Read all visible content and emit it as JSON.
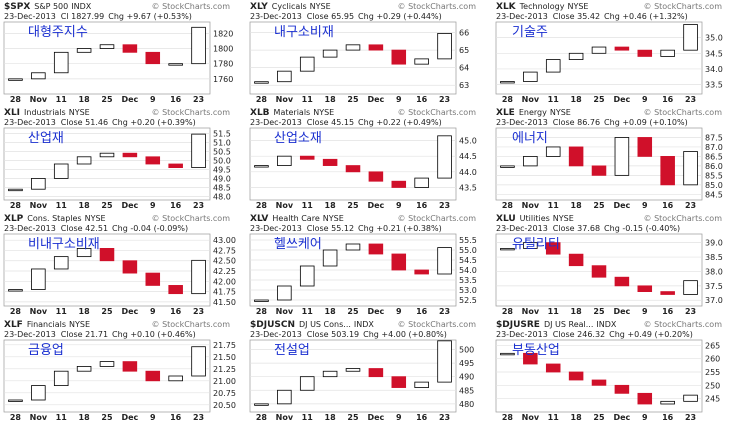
{
  "chart_data": [
    {
      "type": "candlestick",
      "symbol": "$SPX",
      "name": "S&P 500",
      "exchange": "INDX",
      "source": "© StockCharts.com",
      "date": "23-Dec-2013",
      "close": "Cl 1827.99",
      "change": "Chg +9.67 (+0.53%)",
      "title": "대형주지수",
      "categories": [
        "28",
        "Nov",
        "11",
        "18",
        "25",
        "Dec",
        "9",
        "16",
        "23"
      ],
      "values": [
        1760,
        1768,
        1795,
        1800,
        1805,
        1795,
        1780,
        1780,
        1828
      ],
      "ylim": [
        1740,
        1835
      ],
      "yticks": [
        1760,
        1780,
        1800,
        1820
      ]
    },
    {
      "type": "candlestick",
      "symbol": "XLY",
      "name": "Cyclicals",
      "exchange": "NYSE",
      "source": "© StockCharts.com",
      "date": "23-Dec-2013",
      "close": "Close 65.95",
      "change": "Chg +0.29 (+0.44%)",
      "title": "내구소비재",
      "categories": [
        "28",
        "Nov",
        "11",
        "18",
        "25",
        "Dec",
        "9",
        "16",
        "23"
      ],
      "values": [
        63.2,
        63.8,
        64.6,
        65.0,
        65.3,
        65.0,
        64.2,
        64.5,
        65.95
      ],
      "ylim": [
        62.5,
        66.6
      ],
      "yticks": [
        63,
        64,
        65,
        66
      ]
    },
    {
      "type": "candlestick",
      "symbol": "XLK",
      "name": "Technology",
      "exchange": "NYSE",
      "source": "© StockCharts.com",
      "date": "23-Dec-2013",
      "close": "Close 35.42",
      "change": "Chg +0.46 (+1.32%)",
      "title": "기술주",
      "categories": [
        "28",
        "Nov",
        "11",
        "18",
        "25",
        "Dec",
        "9",
        "16",
        "23"
      ],
      "values": [
        33.6,
        33.9,
        34.3,
        34.5,
        34.7,
        34.6,
        34.4,
        34.6,
        35.42
      ],
      "ylim": [
        33.2,
        35.5
      ],
      "yticks": [
        33.5,
        {
          "value": 34,
          "label": "34.0"
        },
        34.5,
        {
          "value": 35,
          "label": "35.0"
        }
      ]
    },
    {
      "type": "candlestick",
      "symbol": "XLI",
      "name": "Industrials",
      "exchange": "NYSE",
      "source": "© StockCharts.com",
      "date": "23-Dec-2013",
      "close": "Close 51.46",
      "change": "Chg +0.20 (+0.39%)",
      "title": "산업재",
      "categories": [
        "28",
        "Nov",
        "11",
        "18",
        "25",
        "Dec",
        "9",
        "16",
        "23"
      ],
      "values": [
        48.4,
        49.0,
        49.8,
        50.2,
        50.4,
        50.2,
        49.8,
        49.6,
        51.46
      ],
      "ylim": [
        47.8,
        51.8
      ],
      "yticks": [
        {
          "value": 48,
          "label": "48.0"
        },
        48.5,
        {
          "value": 49,
          "label": "49.0"
        },
        49.5,
        {
          "value": 50,
          "label": "50.0"
        },
        50.5,
        {
          "value": 51,
          "label": "51.0"
        },
        51.5
      ]
    },
    {
      "type": "candlestick",
      "symbol": "XLB",
      "name": "Materials",
      "exchange": "NYSE",
      "source": "© StockCharts.com",
      "date": "23-Dec-2013",
      "close": "Close 45.15",
      "change": "Chg +0.22 (+0.49%)",
      "title": "산업소재",
      "categories": [
        "28",
        "Nov",
        "11",
        "18",
        "25",
        "Dec",
        "9",
        "16",
        "23"
      ],
      "values": [
        44.2,
        44.5,
        44.4,
        44.2,
        44.0,
        43.7,
        43.5,
        43.8,
        45.15
      ],
      "ylim": [
        43.1,
        45.4
      ],
      "yticks": [
        43.5,
        {
          "value": 44,
          "label": "44.0"
        },
        44.5,
        {
          "value": 45,
          "label": "45.0"
        }
      ]
    },
    {
      "type": "candlestick",
      "symbol": "XLE",
      "name": "Energy",
      "exchange": "NYSE",
      "source": "© StockCharts.com",
      "date": "23-Dec-2013",
      "close": "Close 86.76",
      "change": "Chg +0.09 (+0.10%)",
      "title": "에너지",
      "categories": [
        "28",
        "Nov",
        "11",
        "18",
        "25",
        "Dec",
        "9",
        "16",
        "23"
      ],
      "values": [
        86.0,
        86.5,
        87.0,
        86.0,
        85.5,
        87.5,
        86.5,
        85.0,
        86.76
      ],
      "ylim": [
        84.2,
        88
      ],
      "yticks": [
        84.5,
        {
          "value": 85,
          "label": "85.0"
        },
        85.5,
        {
          "value": 86,
          "label": "86.0"
        },
        86.5,
        {
          "value": 87,
          "label": "87.0"
        },
        87.5
      ]
    },
    {
      "type": "candlestick",
      "symbol": "XLP",
      "name": "Cons. Staples",
      "exchange": "NYSE",
      "source": "© StockCharts.com",
      "date": "23-Dec-2013",
      "close": "Close 42.51",
      "change": "Chg -0.04 (-0.09%)",
      "title": "비내구소비재",
      "categories": [
        "28",
        "Nov",
        "11",
        "18",
        "25",
        "Dec",
        "9",
        "16",
        "23"
      ],
      "values": [
        41.8,
        42.3,
        42.6,
        42.8,
        42.5,
        42.2,
        41.9,
        41.7,
        42.51
      ],
      "ylim": [
        41.4,
        43.15
      ],
      "yticks": [
        {
          "value": 41.5,
          "label": "41.50"
        },
        41.75,
        {
          "value": 42,
          "label": "42.00"
        },
        42.25,
        {
          "value": 42.5,
          "label": "42.50"
        },
        42.75,
        {
          "value": 43,
          "label": "43.00"
        }
      ]
    },
    {
      "type": "candlestick",
      "symbol": "XLV",
      "name": "Health Care",
      "exchange": "NYSE",
      "source": "© StockCharts.com",
      "date": "23-Dec-2013",
      "close": "Close 55.12",
      "change": "Chg +0.21 (+0.38%)",
      "title": "헬쓰케어",
      "categories": [
        "28",
        "Nov",
        "11",
        "18",
        "25",
        "Dec",
        "9",
        "16",
        "23"
      ],
      "values": [
        52.5,
        53.2,
        54.2,
        55.0,
        55.3,
        54.8,
        54.0,
        53.8,
        55.12
      ],
      "ylim": [
        52.2,
        55.8
      ],
      "yticks": [
        52.5,
        {
          "value": 53,
          "label": "53.0"
        },
        53.5,
        {
          "value": 54,
          "label": "54.0"
        },
        54.5,
        {
          "value": 55,
          "label": "55.0"
        },
        55.5
      ]
    },
    {
      "type": "candlestick",
      "symbol": "XLU",
      "name": "Utilities",
      "exchange": "NYSE",
      "source": "© StockCharts.com",
      "date": "23-Dec-2013",
      "close": "Close 37.68",
      "change": "Chg -0.15 (-0.40%)",
      "title": "유틸리티",
      "categories": [
        "28",
        "Nov",
        "11",
        "18",
        "25",
        "Dec",
        "9",
        "16",
        "23"
      ],
      "values": [
        38.8,
        39.0,
        38.6,
        38.2,
        37.8,
        37.5,
        37.3,
        37.2,
        37.68
      ],
      "ylim": [
        36.8,
        39.3
      ],
      "yticks": [
        {
          "value": 37,
          "label": "37.0"
        },
        37.5,
        {
          "value": 38,
          "label": "38.0"
        },
        38.5,
        {
          "value": 39,
          "label": "39.0"
        }
      ]
    },
    {
      "type": "candlestick",
      "symbol": "XLF",
      "name": "Financials",
      "exchange": "NYSE",
      "source": "© StockCharts.com",
      "date": "23-Dec-2013",
      "close": "Close 21.71",
      "change": "Chg +0.10 (+0.46%)",
      "title": "금융업",
      "categories": [
        "28",
        "Nov",
        "11",
        "18",
        "25",
        "Dec",
        "9",
        "16",
        "23"
      ],
      "values": [
        20.6,
        20.9,
        21.2,
        21.3,
        21.4,
        21.2,
        21.0,
        21.1,
        21.71
      ],
      "ylim": [
        20.35,
        21.85
      ],
      "yticks": [
        {
          "value": 20.5,
          "label": "20.50"
        },
        20.75,
        {
          "value": 21,
          "label": "21.00"
        },
        21.25,
        {
          "value": 21.5,
          "label": "21.50"
        },
        21.75
      ]
    },
    {
      "type": "candlestick",
      "symbol": "$DJUSCN",
      "name": "DJ US Cons...",
      "exchange": "INDX",
      "source": "© StockCharts.com",
      "date": "23-Dec-2013",
      "close": "Close 503.19",
      "change": "Chg +4.00 (+0.80%)",
      "title": "전설업",
      "categories": [
        "28",
        "Nov",
        "11",
        "18",
        "25",
        "Dec",
        "9",
        "16",
        "23"
      ],
      "values": [
        480,
        485,
        490,
        492,
        493,
        490,
        486,
        488,
        503.19
      ],
      "ylim": [
        477,
        503.5
      ],
      "yticks": [
        480,
        485,
        490,
        495,
        500
      ]
    },
    {
      "type": "candlestick",
      "symbol": "$DJUSRE",
      "name": "DJ US Real...",
      "exchange": "INDX",
      "source": "© StockCharts.com",
      "date": "23-Dec-2013",
      "close": "Close 246.32",
      "change": "Chg +0.49 (+0.20%)",
      "title": "부동산업",
      "categories": [
        "28",
        "Nov",
        "11",
        "18",
        "25",
        "Dec",
        "9",
        "16",
        "23"
      ],
      "values": [
        262,
        258,
        255,
        252,
        250,
        247,
        243,
        244,
        246.32
      ],
      "ylim": [
        240,
        267
      ],
      "yticks": [
        245,
        250,
        255,
        260,
        265
      ]
    }
  ]
}
